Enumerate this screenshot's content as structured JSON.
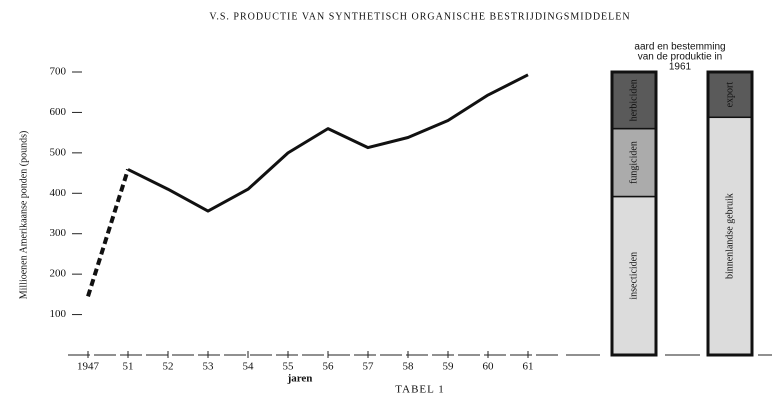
{
  "chart_data": [
    {
      "type": "line",
      "title": "V.S. PRODUCTIE VAN SYNTHETISCH ORGANISCHE BESTRIJDINGSMIDDELEN",
      "ylabel": "Millioenen Amerikaanse ponden (pounds)",
      "xlabel": "jaren",
      "caption": "TABEL 1",
      "categories": [
        "1947",
        "51",
        "52",
        "53",
        "54",
        "55",
        "56",
        "57",
        "58",
        "59",
        "60",
        "61"
      ],
      "values": [
        145,
        459,
        410,
        356,
        410,
        500,
        560,
        513,
        538,
        580,
        643,
        693
      ],
      "dashed_segments": [
        0
      ],
      "color": "#111111",
      "ylim": [
        0,
        700
      ],
      "yticks": [
        100,
        200,
        300,
        400,
        500,
        600,
        700
      ]
    },
    {
      "type": "stacked_column",
      "title_lines": [
        "aard en bestemming",
        "van de produktie in",
        "1961"
      ],
      "bars": [
        [
          {
            "name": "insecticiden",
            "value": 56,
            "color": "#dcdcdc"
          },
          {
            "name": "fungiciden",
            "value": 24,
            "color": "#ababab"
          },
          {
            "name": "herbiciden",
            "value": 20,
            "color": "#5a5a5a"
          }
        ],
        [
          {
            "name": "binnenlandse gebruik",
            "value": 84,
            "color": "#dcdcdc"
          },
          {
            "name": "export",
            "value": 16,
            "color": "#5a5a5a"
          }
        ]
      ]
    }
  ]
}
